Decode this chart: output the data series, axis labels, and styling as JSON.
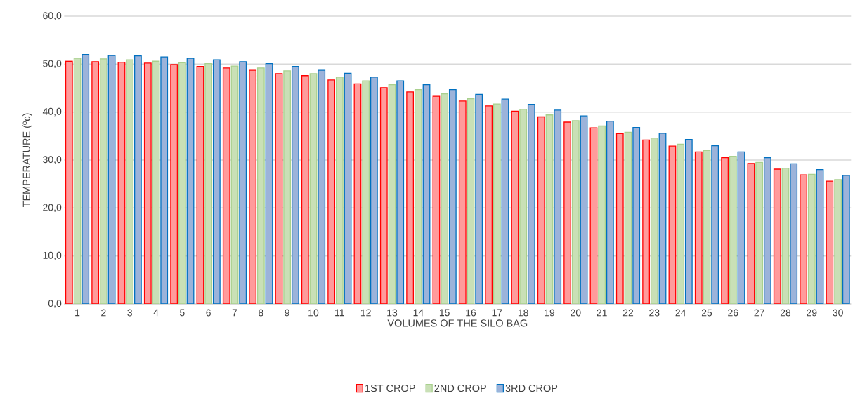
{
  "chart_data": {
    "type": "bar",
    "xlabel": "VOLUMES OF THE SILO BAG",
    "ylabel": "TEMPERATURE (ºc)",
    "categories": [
      "1",
      "2",
      "3",
      "4",
      "5",
      "6",
      "7",
      "8",
      "9",
      "10",
      "11",
      "12",
      "13",
      "14",
      "15",
      "16",
      "17",
      "18",
      "19",
      "20",
      "21",
      "22",
      "23",
      "24",
      "25",
      "26",
      "27",
      "28",
      "29",
      "30"
    ],
    "series": [
      {
        "name": "1ST CROP",
        "color": "#ff9b9b",
        "values": [
          50.6,
          50.5,
          50.4,
          50.2,
          49.9,
          49.5,
          49.2,
          48.7,
          48.0,
          47.6,
          46.7,
          45.9,
          45.1,
          44.2,
          43.3,
          42.3,
          41.3,
          40.2,
          39.0,
          37.9,
          36.7,
          35.5,
          34.2,
          32.9,
          31.7,
          30.5,
          29.3,
          28.1,
          26.9,
          25.6
        ]
      },
      {
        "name": "2ND CROP",
        "color": "#c9e0b6",
        "values": [
          51.2,
          51.1,
          50.9,
          50.6,
          50.3,
          50.1,
          49.6,
          49.2,
          48.6,
          48.0,
          47.3,
          46.5,
          45.7,
          44.7,
          43.8,
          42.8,
          41.7,
          40.6,
          39.4,
          38.2,
          37.1,
          35.8,
          34.6,
          33.3,
          32.0,
          30.8,
          29.5,
          28.3,
          27.0,
          25.9
        ]
      },
      {
        "name": "3RD CROP",
        "color": "#9cb3da",
        "values": [
          52.0,
          51.8,
          51.7,
          51.5,
          51.2,
          50.9,
          50.5,
          50.1,
          49.5,
          48.7,
          48.1,
          47.3,
          46.5,
          45.7,
          44.7,
          43.7,
          42.7,
          41.6,
          40.4,
          39.2,
          38.1,
          36.8,
          35.6,
          34.3,
          33.0,
          31.7,
          30.5,
          29.2,
          28.0,
          26.8
        ]
      }
    ],
    "ylim": [
      0,
      60
    ],
    "yticks": [
      {
        "value": 0,
        "label": "0,0"
      },
      {
        "value": 10,
        "label": "10,0"
      },
      {
        "value": 20,
        "label": "20,0"
      },
      {
        "value": 30,
        "label": "30,0"
      },
      {
        "value": 40,
        "label": "40,0"
      },
      {
        "value": 50,
        "label": "50,0"
      },
      {
        "value": 60,
        "label": "60,0"
      }
    ],
    "grid": "y",
    "legend": "bottom"
  }
}
